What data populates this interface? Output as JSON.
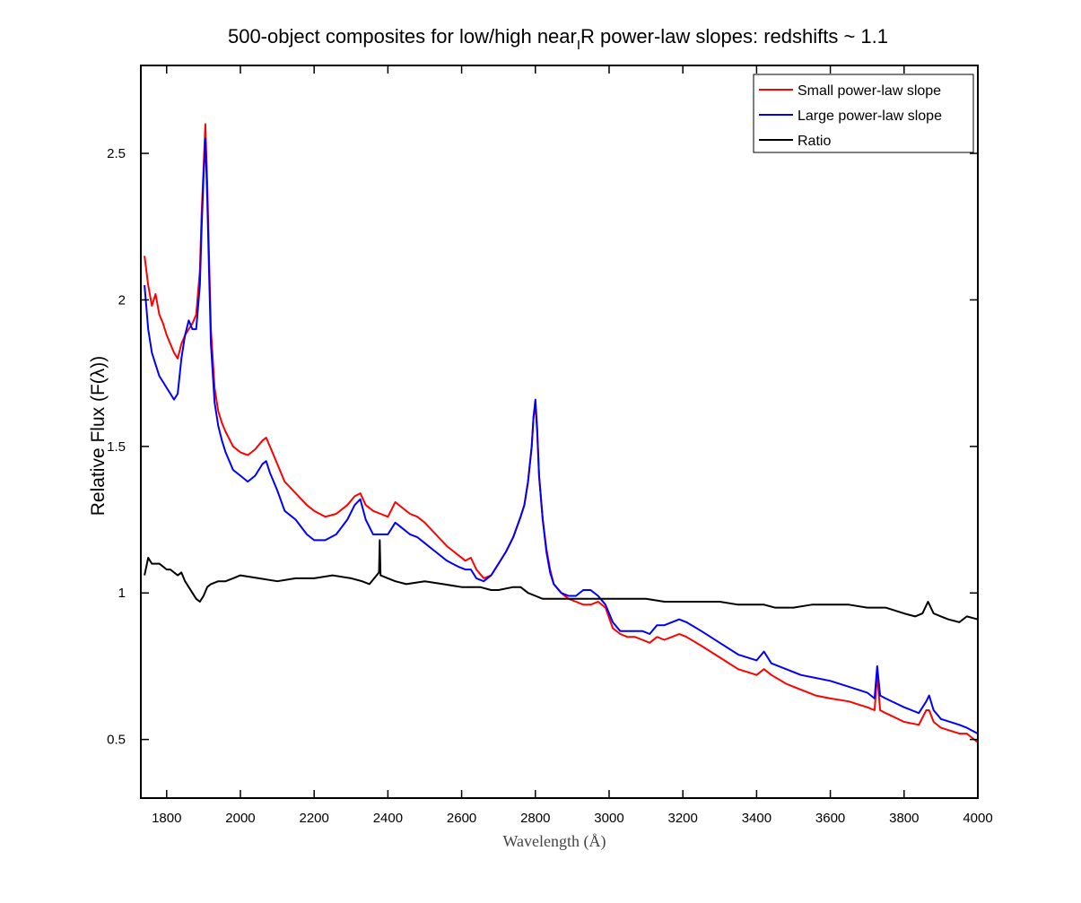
{
  "chart_data": {
    "type": "line",
    "title": "500-object composites for low/high near",
    "title_sub": "I",
    "title_rest": "R power-law slopes: redshifts ~ 1.1",
    "xlabel": "Wavelength (Å)",
    "ylabel": "Relative Flux (F(λ))",
    "xlim": [
      1730,
      4000
    ],
    "ylim": [
      0.3,
      2.8
    ],
    "xticks": [
      1800,
      2000,
      2200,
      2400,
      2600,
      2800,
      3000,
      3200,
      3400,
      3600,
      3800,
      4000
    ],
    "xtick_labels": [
      "1800",
      "2000",
      "2200",
      "2400",
      "2600",
      "2800",
      "3000",
      "3200",
      "3400",
      "3600",
      "3800",
      "4000"
    ],
    "yticks": [
      0.5,
      1,
      1.5,
      2,
      2.5
    ],
    "ytick_labels": [
      "0.5",
      "1",
      "1.5",
      "2",
      "2.5"
    ],
    "grid": false,
    "legend_position": "top-right",
    "series": [
      {
        "name": "Small power-law slope",
        "color": "#ff0000",
        "x": [
          1740,
          1750,
          1760,
          1770,
          1780,
          1790,
          1800,
          1810,
          1820,
          1830,
          1840,
          1850,
          1860,
          1870,
          1880,
          1890,
          1895,
          1900,
          1905,
          1910,
          1915,
          1920,
          1930,
          1940,
          1950,
          1960,
          1980,
          2000,
          2020,
          2040,
          2060,
          2070,
          2080,
          2100,
          2120,
          2150,
          2180,
          2200,
          2230,
          2260,
          2290,
          2310,
          2325,
          2340,
          2360,
          2380,
          2400,
          2420,
          2440,
          2460,
          2480,
          2500,
          2530,
          2560,
          2590,
          2610,
          2625,
          2640,
          2660,
          2680,
          2700,
          2720,
          2740,
          2760,
          2770,
          2780,
          2790,
          2795,
          2800,
          2805,
          2810,
          2820,
          2830,
          2840,
          2850,
          2870,
          2890,
          2910,
          2930,
          2950,
          2970,
          2990,
          3010,
          3030,
          3050,
          3070,
          3090,
          3110,
          3130,
          3150,
          3170,
          3190,
          3210,
          3250,
          3300,
          3350,
          3400,
          3420,
          3440,
          3480,
          3520,
          3560,
          3600,
          3650,
          3700,
          3720,
          3727,
          3735,
          3750,
          3800,
          3840,
          3860,
          3868,
          3880,
          3900,
          3950,
          3970,
          4000
        ],
        "y": [
          2.15,
          2.05,
          1.98,
          2.02,
          1.95,
          1.92,
          1.88,
          1.85,
          1.82,
          1.8,
          1.85,
          1.88,
          1.9,
          1.92,
          1.95,
          2.1,
          2.3,
          2.45,
          2.6,
          2.4,
          2.15,
          1.9,
          1.7,
          1.62,
          1.58,
          1.55,
          1.5,
          1.48,
          1.47,
          1.49,
          1.52,
          1.53,
          1.5,
          1.44,
          1.38,
          1.34,
          1.3,
          1.28,
          1.26,
          1.27,
          1.3,
          1.33,
          1.34,
          1.3,
          1.28,
          1.27,
          1.26,
          1.31,
          1.29,
          1.27,
          1.26,
          1.24,
          1.2,
          1.16,
          1.13,
          1.11,
          1.12,
          1.08,
          1.05,
          1.06,
          1.1,
          1.14,
          1.19,
          1.26,
          1.3,
          1.38,
          1.5,
          1.6,
          1.64,
          1.55,
          1.4,
          1.25,
          1.15,
          1.08,
          1.03,
          1.0,
          0.98,
          0.97,
          0.96,
          0.96,
          0.97,
          0.95,
          0.88,
          0.86,
          0.85,
          0.85,
          0.84,
          0.83,
          0.85,
          0.84,
          0.85,
          0.86,
          0.85,
          0.82,
          0.78,
          0.74,
          0.72,
          0.74,
          0.72,
          0.69,
          0.67,
          0.65,
          0.64,
          0.63,
          0.61,
          0.6,
          0.72,
          0.6,
          0.59,
          0.56,
          0.55,
          0.6,
          0.6,
          0.56,
          0.54,
          0.52,
          0.52,
          0.49
        ]
      },
      {
        "name": "Large power-law slope",
        "color": "#0000ff",
        "x": [
          1740,
          1750,
          1760,
          1770,
          1780,
          1790,
          1800,
          1810,
          1820,
          1830,
          1840,
          1850,
          1860,
          1870,
          1880,
          1890,
          1895,
          1900,
          1905,
          1910,
          1915,
          1920,
          1930,
          1940,
          1950,
          1960,
          1980,
          2000,
          2020,
          2040,
          2060,
          2070,
          2080,
          2100,
          2120,
          2150,
          2180,
          2200,
          2230,
          2260,
          2290,
          2310,
          2325,
          2340,
          2360,
          2380,
          2400,
          2420,
          2440,
          2460,
          2480,
          2500,
          2530,
          2560,
          2590,
          2610,
          2625,
          2640,
          2660,
          2680,
          2700,
          2720,
          2740,
          2760,
          2770,
          2780,
          2790,
          2795,
          2800,
          2805,
          2810,
          2820,
          2830,
          2840,
          2850,
          2870,
          2890,
          2910,
          2930,
          2950,
          2970,
          2990,
          3010,
          3030,
          3050,
          3070,
          3090,
          3110,
          3130,
          3150,
          3170,
          3190,
          3210,
          3250,
          3300,
          3350,
          3400,
          3420,
          3440,
          3480,
          3520,
          3560,
          3600,
          3650,
          3700,
          3720,
          3727,
          3735,
          3750,
          3800,
          3840,
          3860,
          3868,
          3880,
          3900,
          3950,
          3970,
          4000
        ],
        "y": [
          2.05,
          1.9,
          1.82,
          1.78,
          1.74,
          1.72,
          1.7,
          1.68,
          1.66,
          1.68,
          1.8,
          1.88,
          1.93,
          1.9,
          1.9,
          2.05,
          2.25,
          2.42,
          2.55,
          2.35,
          2.1,
          1.85,
          1.65,
          1.57,
          1.52,
          1.48,
          1.42,
          1.4,
          1.38,
          1.4,
          1.44,
          1.45,
          1.41,
          1.35,
          1.28,
          1.25,
          1.2,
          1.18,
          1.18,
          1.2,
          1.25,
          1.3,
          1.32,
          1.25,
          1.2,
          1.2,
          1.2,
          1.24,
          1.22,
          1.2,
          1.19,
          1.17,
          1.14,
          1.11,
          1.09,
          1.08,
          1.08,
          1.05,
          1.04,
          1.06,
          1.1,
          1.14,
          1.19,
          1.26,
          1.3,
          1.38,
          1.5,
          1.6,
          1.66,
          1.56,
          1.4,
          1.25,
          1.14,
          1.07,
          1.03,
          1.0,
          0.99,
          0.99,
          1.01,
          1.01,
          0.99,
          0.96,
          0.9,
          0.87,
          0.87,
          0.87,
          0.87,
          0.86,
          0.89,
          0.89,
          0.9,
          0.91,
          0.9,
          0.87,
          0.83,
          0.79,
          0.77,
          0.8,
          0.76,
          0.74,
          0.72,
          0.71,
          0.7,
          0.68,
          0.66,
          0.64,
          0.75,
          0.65,
          0.64,
          0.61,
          0.59,
          0.63,
          0.65,
          0.6,
          0.57,
          0.55,
          0.54,
          0.52
        ]
      },
      {
        "name": "Ratio",
        "color": "#000000",
        "x": [
          1740,
          1750,
          1760,
          1770,
          1780,
          1790,
          1800,
          1810,
          1820,
          1830,
          1840,
          1850,
          1860,
          1870,
          1880,
          1890,
          1900,
          1910,
          1920,
          1940,
          1960,
          1980,
          2000,
          2050,
          2100,
          2150,
          2200,
          2250,
          2300,
          2330,
          2350,
          2376,
          2378,
          2380,
          2400,
          2420,
          2450,
          2500,
          2550,
          2600,
          2650,
          2680,
          2700,
          2740,
          2760,
          2780,
          2800,
          2820,
          2850,
          2880,
          2900,
          2950,
          3000,
          3050,
          3100,
          3150,
          3200,
          3250,
          3300,
          3350,
          3400,
          3420,
          3450,
          3500,
          3550,
          3580,
          3600,
          3650,
          3700,
          3750,
          3800,
          3830,
          3850,
          3865,
          3880,
          3900,
          3920,
          3950,
          3970,
          4000
        ],
        "y": [
          1.06,
          1.12,
          1.1,
          1.1,
          1.1,
          1.09,
          1.08,
          1.08,
          1.07,
          1.06,
          1.07,
          1.04,
          1.02,
          1.0,
          0.98,
          0.97,
          0.99,
          1.02,
          1.03,
          1.04,
          1.04,
          1.05,
          1.06,
          1.05,
          1.04,
          1.05,
          1.05,
          1.06,
          1.05,
          1.04,
          1.03,
          1.07,
          1.18,
          1.06,
          1.05,
          1.04,
          1.03,
          1.04,
          1.03,
          1.02,
          1.02,
          1.01,
          1.01,
          1.02,
          1.02,
          1.0,
          0.99,
          0.98,
          0.98,
          0.98,
          0.98,
          0.98,
          0.98,
          0.98,
          0.98,
          0.97,
          0.97,
          0.97,
          0.97,
          0.96,
          0.96,
          0.96,
          0.95,
          0.95,
          0.96,
          0.96,
          0.96,
          0.96,
          0.95,
          0.95,
          0.93,
          0.92,
          0.93,
          0.97,
          0.93,
          0.92,
          0.91,
          0.9,
          0.92,
          0.91
        ]
      }
    ]
  }
}
